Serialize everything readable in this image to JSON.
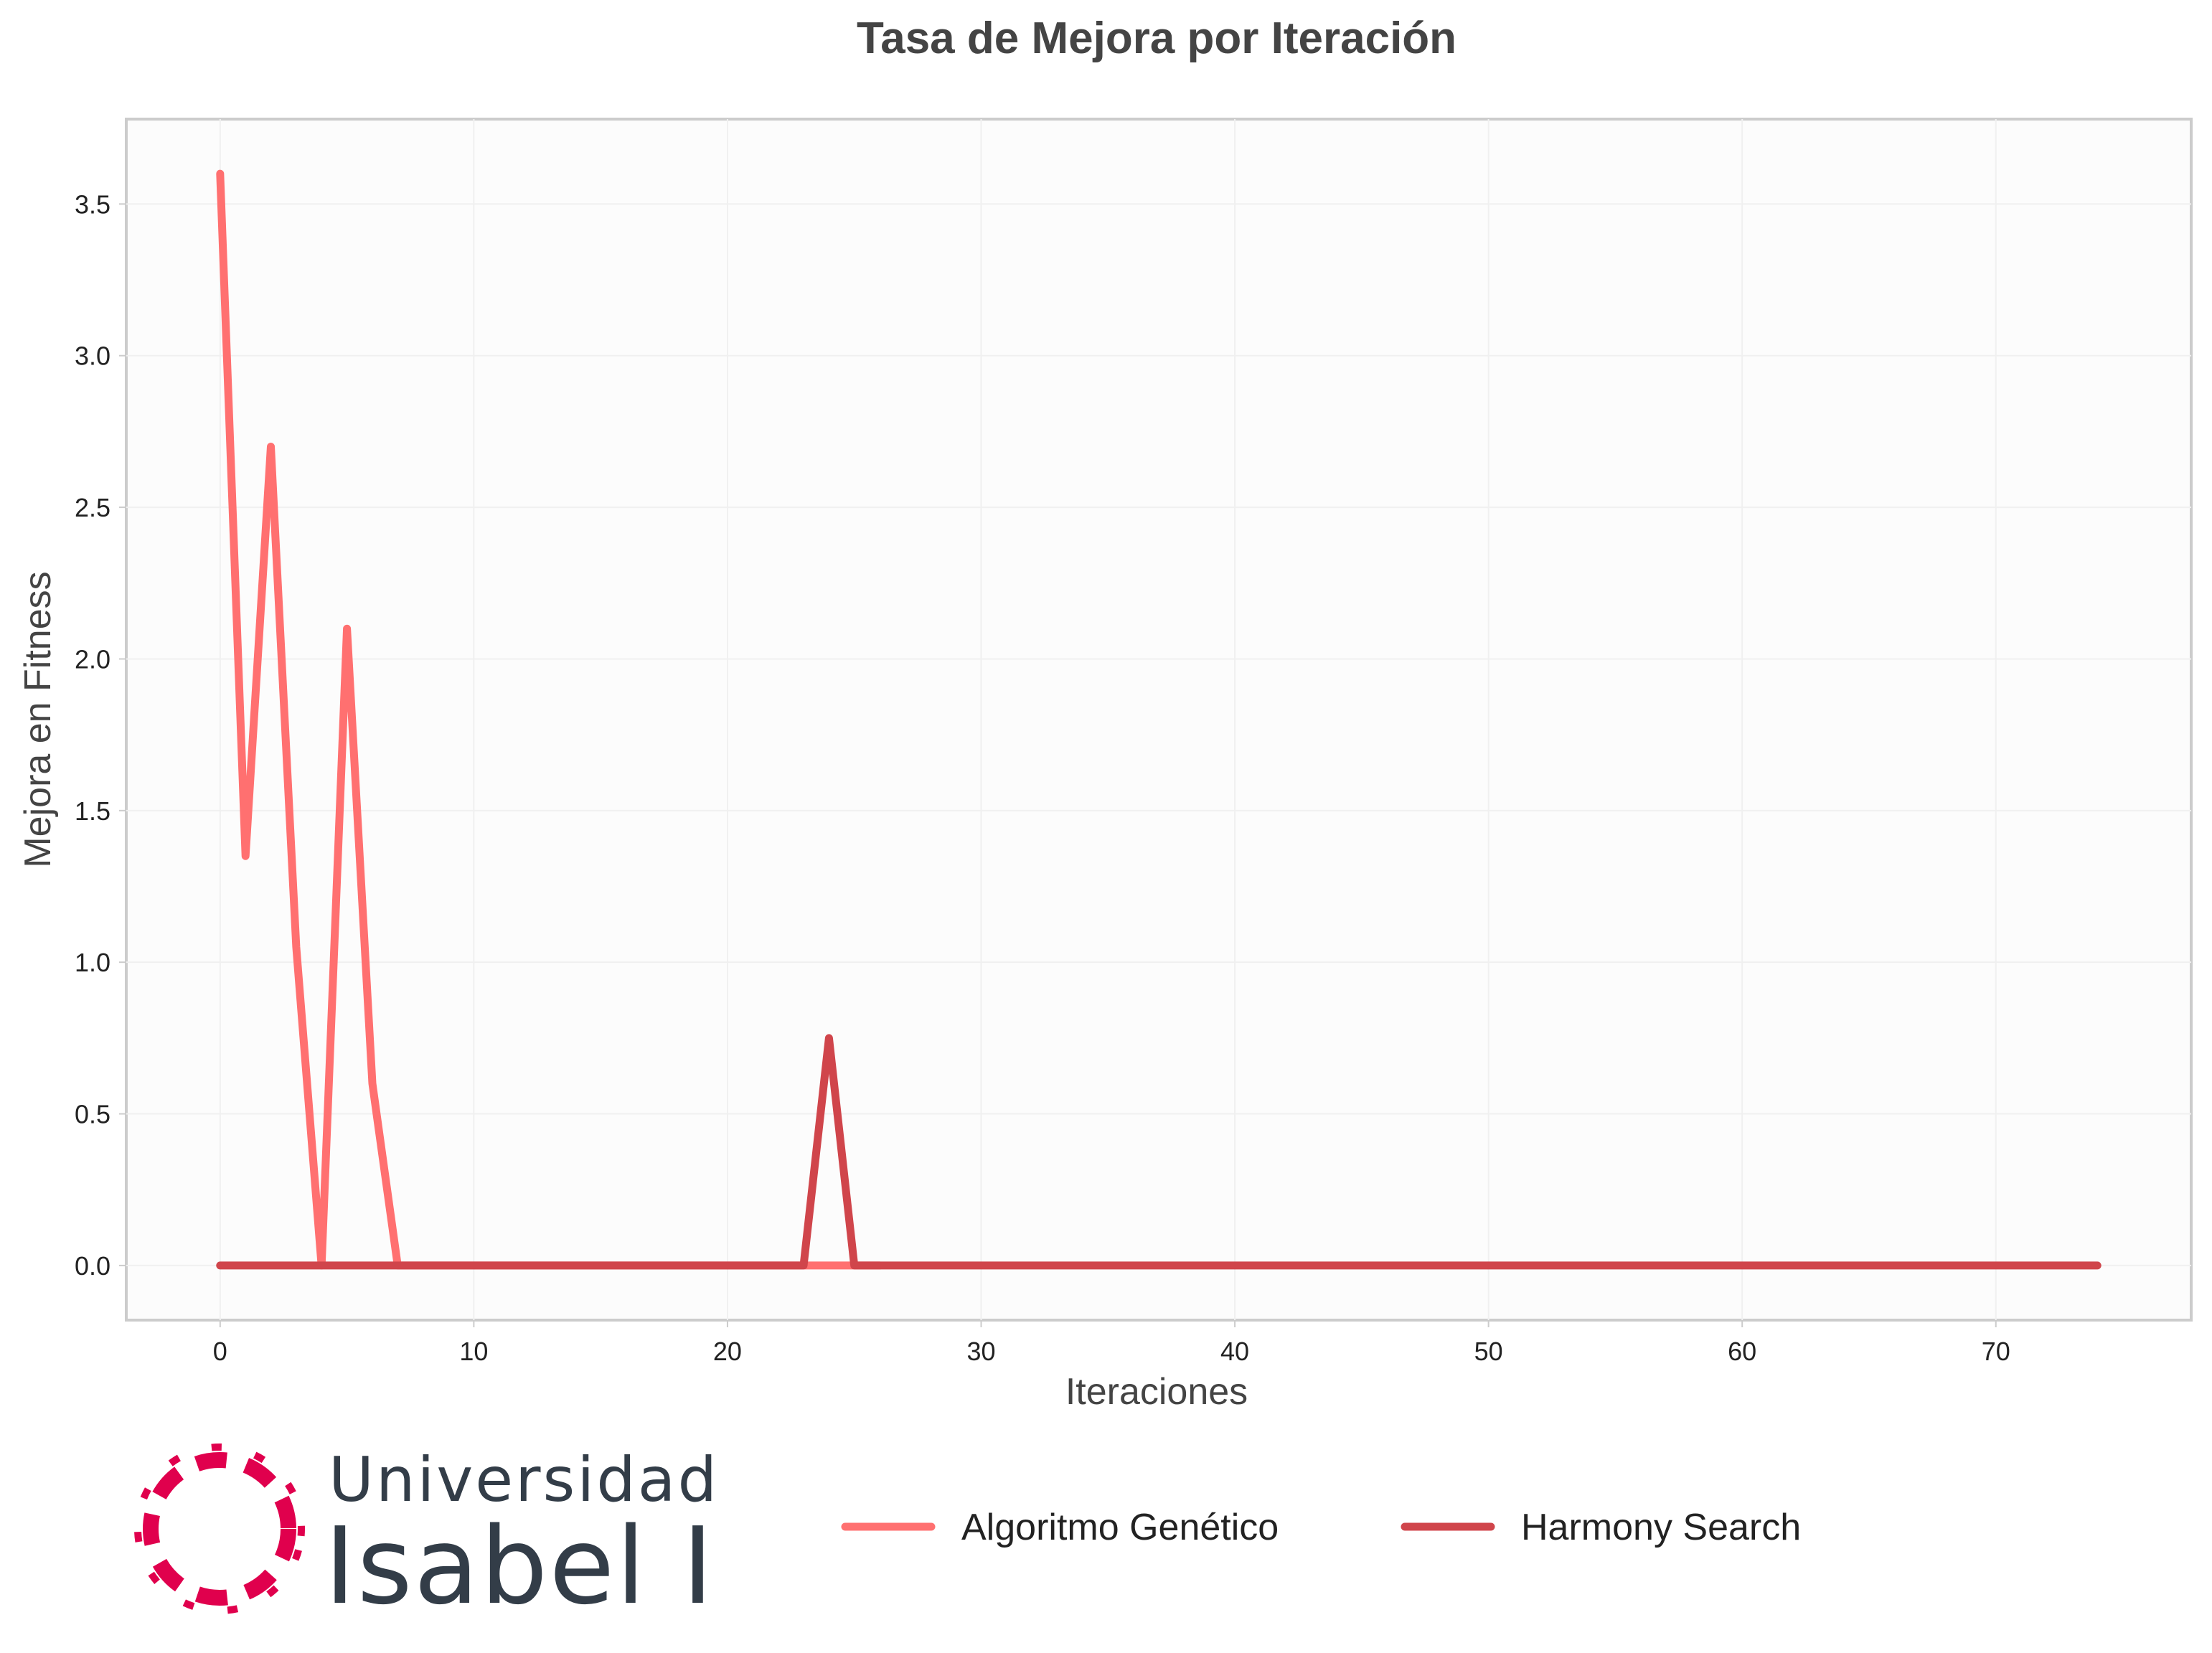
{
  "chart_data": {
    "type": "line",
    "title": "Tasa de Mejora por Iteración",
    "xlabel": "Iteraciones",
    "ylabel": "Mejora en Fitness",
    "xlim": [
      -3.7,
      77.7
    ],
    "ylim": [
      -0.18,
      3.78
    ],
    "xticks": [
      0,
      10,
      20,
      30,
      40,
      50,
      60,
      70
    ],
    "yticks": [
      0.0,
      0.5,
      1.0,
      1.5,
      2.0,
      2.5,
      3.0,
      3.5
    ],
    "grid": true,
    "legend_position": "bottom-center",
    "series": [
      {
        "name": "Algoritmo Genético",
        "color": "#ff7070",
        "x": [
          0,
          1,
          2,
          3,
          4,
          5,
          6,
          7,
          8,
          9,
          10,
          11,
          12,
          13,
          14,
          15,
          16,
          17,
          18,
          19,
          20,
          21,
          22,
          23,
          24,
          25,
          26
        ],
        "y": [
          3.6,
          1.35,
          2.7,
          1.05,
          0.0,
          2.1,
          0.6,
          0.0,
          0,
          0,
          0,
          0,
          0,
          0,
          0,
          0,
          0,
          0,
          0,
          0,
          0,
          0,
          0,
          0,
          0,
          0,
          0
        ]
      },
      {
        "name": "Harmony Search",
        "color": "#d0454b",
        "x": [
          0,
          1,
          2,
          3,
          4,
          5,
          6,
          7,
          8,
          9,
          10,
          11,
          12,
          13,
          14,
          15,
          16,
          17,
          18,
          19,
          20,
          21,
          22,
          23,
          24,
          25,
          26,
          27,
          28,
          29,
          30,
          31,
          32,
          33,
          34,
          35,
          36,
          37,
          38,
          39,
          40,
          41,
          42,
          43,
          44,
          45,
          46,
          47,
          48,
          49,
          50,
          51,
          52,
          53,
          54,
          55,
          56,
          57,
          58,
          59,
          60,
          61,
          62,
          63,
          64,
          65,
          66,
          67,
          68,
          69,
          70,
          71,
          72,
          73,
          74
        ],
        "y": [
          0,
          0,
          0,
          0,
          0,
          0,
          0,
          0,
          0,
          0,
          0,
          0,
          0,
          0,
          0,
          0,
          0,
          0,
          0,
          0,
          0,
          0,
          0,
          0,
          0.75,
          0,
          0,
          0,
          0,
          0,
          0,
          0,
          0,
          0,
          0,
          0,
          0,
          0,
          0,
          0,
          0,
          0,
          0,
          0,
          0,
          0,
          0,
          0,
          0,
          0,
          0,
          0,
          0,
          0,
          0,
          0,
          0,
          0,
          0,
          0,
          0,
          0,
          0,
          0,
          0,
          0,
          0,
          0,
          0,
          0,
          0,
          0,
          0,
          0,
          0
        ]
      }
    ]
  },
  "logo": {
    "line1": "Universidad",
    "line2": "Isabel I",
    "color": "#e0004d"
  }
}
